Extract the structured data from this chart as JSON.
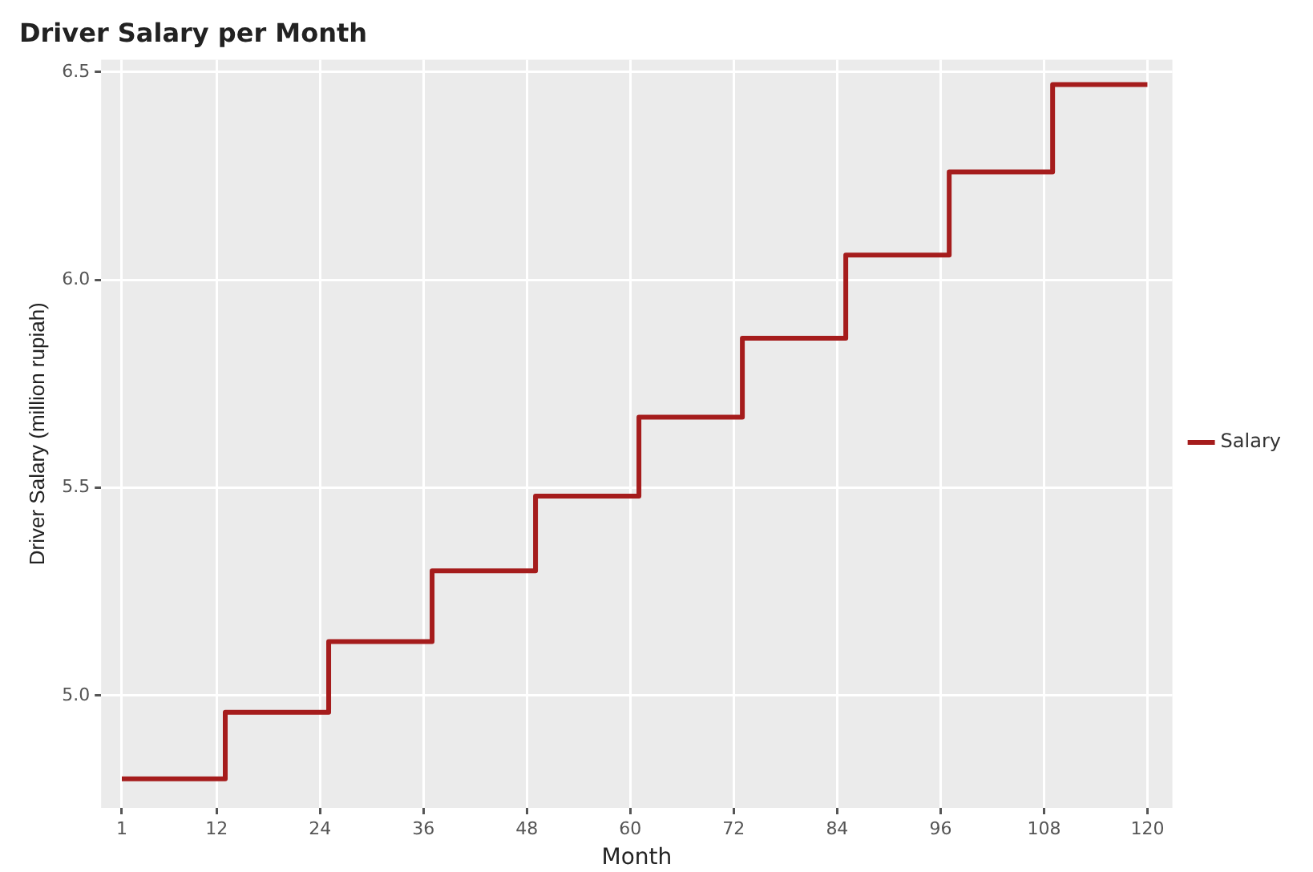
{
  "chart_data": {
    "type": "step",
    "title": "Driver Salary per Month",
    "xlabel": "Month",
    "ylabel": "Driver Salary (million rupiah)",
    "x": [
      1,
      13,
      25,
      37,
      49,
      61,
      73,
      85,
      97,
      109,
      120
    ],
    "series": [
      {
        "name": "Salary",
        "color": "#a51c1c",
        "values": [
          4.8,
          4.96,
          5.13,
          5.3,
          5.48,
          5.67,
          5.86,
          6.06,
          6.26,
          6.47,
          6.47
        ]
      }
    ],
    "xlim": [
      -1.4,
      122.9
    ],
    "xticks": [
      1,
      12,
      24,
      36,
      48,
      60,
      72,
      84,
      96,
      108,
      120
    ],
    "ylim": [
      4.73,
      6.53
    ],
    "yticks": [
      {
        "value": 5,
        "label": "5.0"
      },
      5.5,
      {
        "value": 6,
        "label": "6.0"
      },
      6.5
    ],
    "grid": true,
    "legend": "right",
    "marker": "none",
    "line_style": "solid"
  }
}
